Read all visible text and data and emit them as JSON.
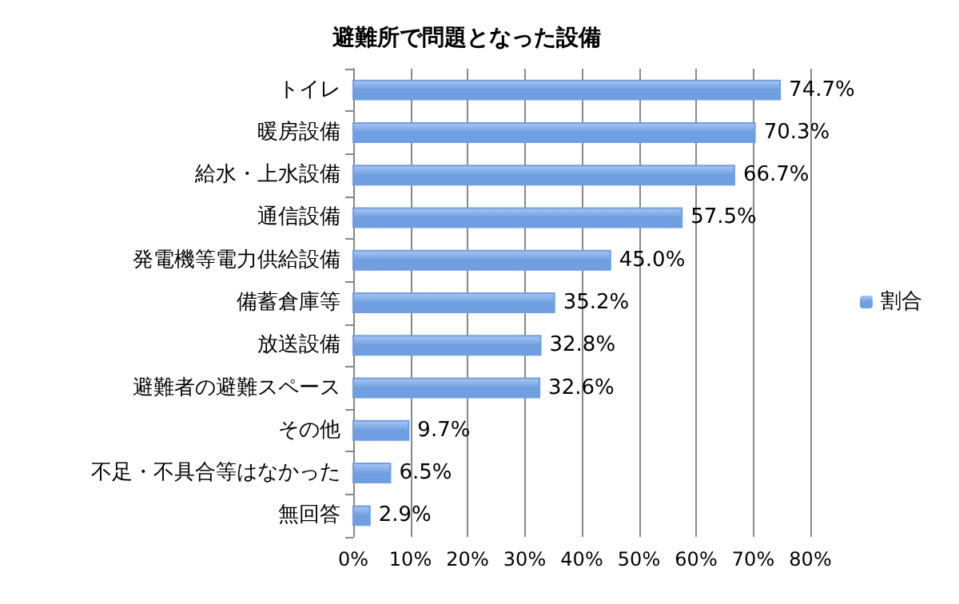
{
  "chart_data": {
    "type": "bar",
    "orientation": "horizontal",
    "title": "避難所で問題となった設備",
    "categories": [
      "トイレ",
      "暖房設備",
      "給水・上水設備",
      "通信設備",
      "発電機等電力供給設備",
      "備蓄倉庫等",
      "放送設備",
      "避難者の避難スペース",
      "その他",
      "不足・不具合等はなかった",
      "無回答"
    ],
    "series": [
      {
        "name": "割合",
        "color": "#6f9fe0",
        "values": [
          74.7,
          70.3,
          66.7,
          57.5,
          45.0,
          35.2,
          32.8,
          32.6,
          9.7,
          6.5,
          2.9
        ],
        "value_labels": [
          "74.7%",
          "70.3%",
          "66.7%",
          "57.5%",
          "45.0%",
          "35.2%",
          "32.8%",
          "32.6%",
          "9.7%",
          "6.5%",
          "2.9%"
        ]
      }
    ],
    "xlim": [
      0,
      80
    ],
    "xticks": [
      {
        "value": 0,
        "label": "0%"
      },
      {
        "value": 10,
        "label": "10%"
      },
      {
        "value": 20,
        "label": "20%"
      },
      {
        "value": 30,
        "label": "30%"
      },
      {
        "value": 40,
        "label": "40%"
      },
      {
        "value": 50,
        "label": "50%"
      },
      {
        "value": 60,
        "label": "60%"
      },
      {
        "value": 70,
        "label": "70%"
      },
      {
        "value": 80,
        "label": "80%"
      }
    ],
    "grid": "x",
    "legend": "right"
  }
}
